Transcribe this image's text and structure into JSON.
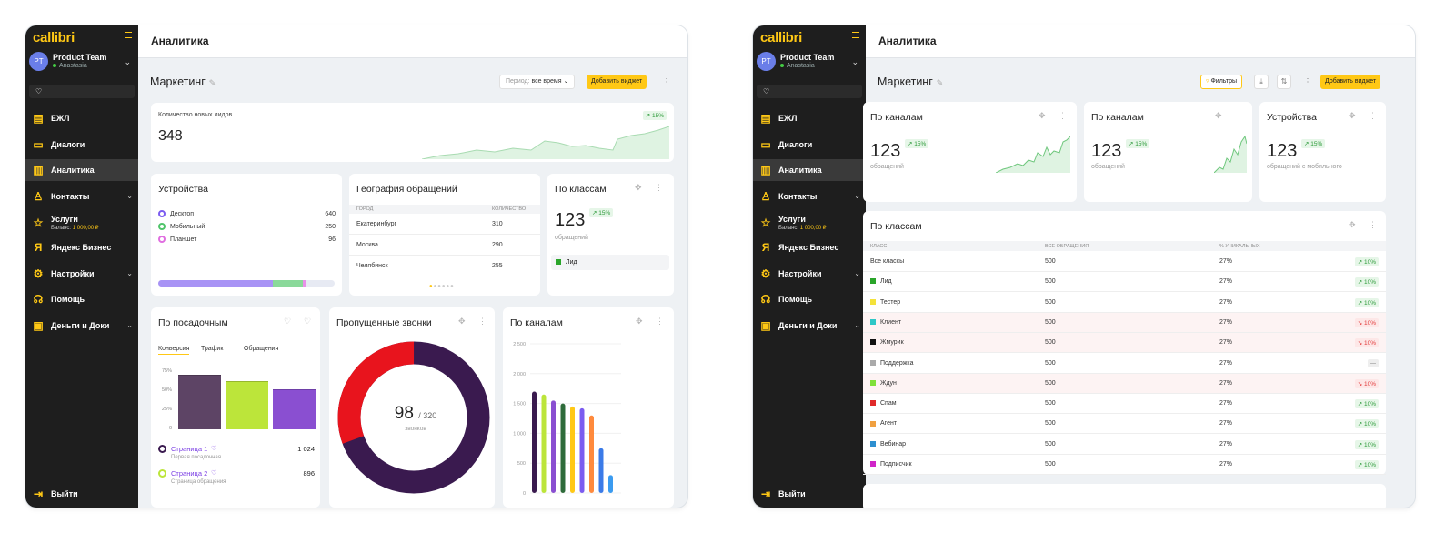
{
  "brand": "callibri",
  "profile": {
    "initials": "PT",
    "name": "Product Team",
    "user": "Anastasia"
  },
  "nav": [
    {
      "label": "ЕЖЛ",
      "icon": "journal-icon"
    },
    {
      "label": "Диалоги",
      "icon": "chat-icon"
    },
    {
      "label": "Аналитика",
      "icon": "chart-icon"
    },
    {
      "label": "Контакты",
      "icon": "user-icon"
    },
    {
      "label": "Услуги",
      "icon": "star-icon",
      "sub_label": "Баланс:",
      "sub_value": "1 000,00 ₽"
    },
    {
      "label": "Яндекс Бизнес",
      "icon": "yandex-icon"
    },
    {
      "label": "Настройки",
      "icon": "gear-icon"
    },
    {
      "label": "Помощь",
      "icon": "headset-icon"
    },
    {
      "label": "Деньги и Доки",
      "icon": "wallet-icon"
    }
  ],
  "exit_label": "Выйти",
  "header_title": "Аналитика",
  "dashboard_title": "Маркетинг",
  "left": {
    "period_label": "Период:",
    "period_value": "все время",
    "add_widget": "Добавить виджет",
    "leads": {
      "title": "Количество новых лидов",
      "value": "348",
      "badge": "↗ 15%"
    },
    "devices": {
      "title": "Устройства",
      "items": [
        {
          "label": "Десктоп",
          "value": "640",
          "color": "#7b5cf0"
        },
        {
          "label": "Мобильный",
          "value": "250",
          "color": "#4fc46a"
        },
        {
          "label": "Планшет",
          "value": "96",
          "color": "#e06ee0"
        }
      ]
    },
    "geo": {
      "title": "География обращений",
      "col_city": "ГОРОД",
      "col_count": "КОЛИЧЕСТВО",
      "rows": [
        {
          "city": "Екатеринбург",
          "count": "310"
        },
        {
          "city": "Москва",
          "count": "290"
        },
        {
          "city": "Челябинск",
          "count": "255"
        }
      ]
    },
    "classes": {
      "title": "По классам",
      "value": "123",
      "badge": "↗ 15%",
      "sub": "обращений",
      "legend": "Лид"
    },
    "landing": {
      "title": "По посадочным",
      "tabs": [
        "Конверсия",
        "Трафик",
        "Обращения"
      ],
      "yticks": [
        "75%",
        "50%",
        "25%",
        "0"
      ],
      "bars": [
        {
          "value": 70,
          "color": "#5d4465"
        },
        {
          "value": 62,
          "color": "#bce53a"
        },
        {
          "value": 52,
          "color": "#8a4fd1"
        }
      ],
      "pages": [
        {
          "name": "Страница 1",
          "sub": "Первая посадочная",
          "value": "1 024",
          "color": "#3a1a4f"
        },
        {
          "name": "Страница 2",
          "sub": "Страница обращения",
          "value": "896",
          "color": "#bce53a"
        }
      ]
    },
    "missed": {
      "title": "Пропущенные звонки",
      "value": "98",
      "total": "/ 320",
      "sub": "звонков",
      "missed_count": 98,
      "total_count": 320
    },
    "channels": {
      "title": "По каналам",
      "yticks": [
        "2 500",
        "2 000",
        "1 500",
        "1 000",
        "500",
        "0"
      ],
      "ymax": 2500,
      "bars": [
        {
          "value": 1700,
          "color": "#3a1a4f"
        },
        {
          "value": 1650,
          "color": "#bce53a"
        },
        {
          "value": 1550,
          "color": "#8a4fd1"
        },
        {
          "value": 1500,
          "color": "#2e6b3a"
        },
        {
          "value": 1450,
          "color": "#ffc815"
        },
        {
          "value": 1420,
          "color": "#7b5cf0"
        },
        {
          "value": 1300,
          "color": "#ff8a3d"
        },
        {
          "value": 750,
          "color": "#3b7be8"
        },
        {
          "value": 300,
          "color": "#3b9bf0"
        }
      ]
    }
  },
  "right": {
    "filters": "Фильтры",
    "add_widget": "Добавить виджет",
    "ch1": {
      "title": "По каналам",
      "value": "123",
      "badge": "↗ 15%",
      "sub": "обращений"
    },
    "ch2": {
      "title": "По каналам",
      "value": "123",
      "badge": "↗ 15%",
      "sub": "обращений"
    },
    "dev": {
      "title": "Устройства",
      "value": "123",
      "badge": "↗ 15%",
      "sub": "обращений с мобильного"
    },
    "classes": {
      "title": "По классам",
      "cols": [
        "КЛАСС",
        "ВСЕ ОБРАЩЕНИЯ",
        "% УНИКАЛЬНЫХ"
      ],
      "rows": [
        {
          "name": "Все классы",
          "total": "500",
          "pct": "27%",
          "badge": "↗ 10%",
          "trend": "up",
          "color": ""
        },
        {
          "name": "Лид",
          "total": "500",
          "pct": "27%",
          "badge": "↗ 10%",
          "trend": "up",
          "color": "#2aa52a"
        },
        {
          "name": "Тестер",
          "total": "500",
          "pct": "27%",
          "badge": "↗ 10%",
          "trend": "up",
          "color": "#f4e23a"
        },
        {
          "name": "Клиент",
          "total": "500",
          "pct": "27%",
          "badge": "↘ 10%",
          "trend": "dn",
          "color": "#2ec7c7"
        },
        {
          "name": "Жмурик",
          "total": "500",
          "pct": "27%",
          "badge": "↘ 10%",
          "trend": "dn",
          "color": "#111111"
        },
        {
          "name": "Поддержка",
          "total": "500",
          "pct": "27%",
          "badge": "—",
          "trend": "nt",
          "color": "#aaaaaa"
        },
        {
          "name": "Ждун",
          "total": "500",
          "pct": "27%",
          "badge": "↘ 10%",
          "trend": "dn",
          "color": "#7fe03a"
        },
        {
          "name": "Спам",
          "total": "500",
          "pct": "27%",
          "badge": "↗ 10%",
          "trend": "up",
          "color": "#e02a2a"
        },
        {
          "name": "Агент",
          "total": "500",
          "pct": "27%",
          "badge": "↗ 10%",
          "trend": "up",
          "color": "#f0a040"
        },
        {
          "name": "Вебинар",
          "total": "500",
          "pct": "27%",
          "badge": "↗ 10%",
          "trend": "up",
          "color": "#2e8fd0"
        },
        {
          "name": "Подписчик",
          "total": "500",
          "pct": "27%",
          "badge": "↗ 10%",
          "trend": "up",
          "color": "#d024c8"
        }
      ]
    }
  }
}
